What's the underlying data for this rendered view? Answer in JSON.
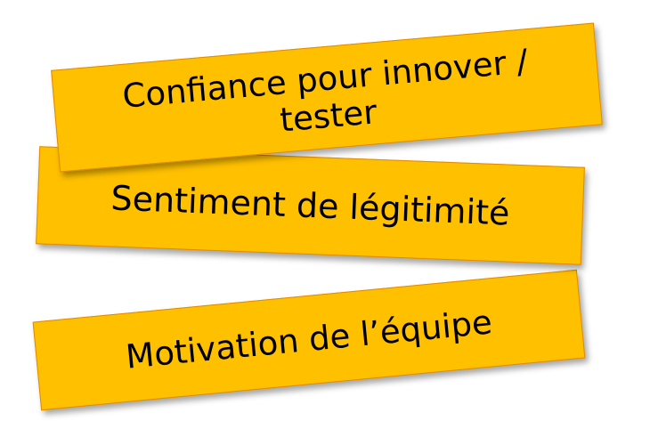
{
  "colors": {
    "banner_fill": "#ffc000",
    "banner_border": "#e08a00",
    "text": "#000000"
  },
  "banners": [
    {
      "text": "Confiance pour innover / tester"
    },
    {
      "text": "Sentiment de légitimité"
    },
    {
      "text": "Motivation de l’équipe"
    }
  ]
}
